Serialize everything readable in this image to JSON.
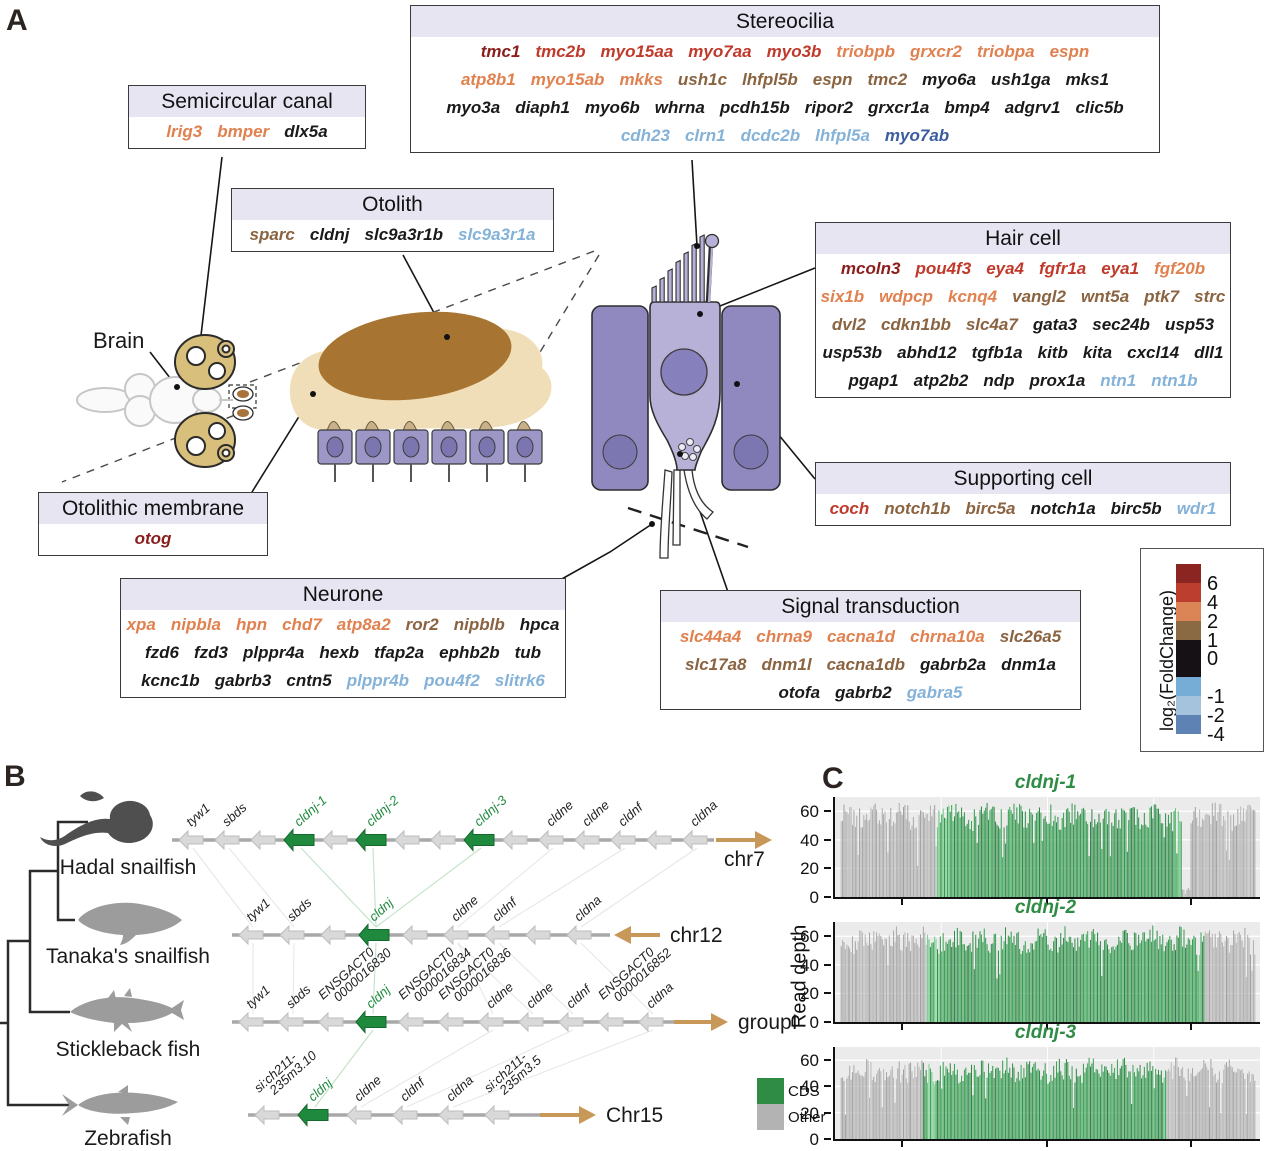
{
  "panelA": {
    "label": "A",
    "palette": {
      "dr": "#8a1e1c",
      "r": "#c03a2b",
      "o": "#e0814f",
      "br": "#8a6340",
      "k": "#1a1a1a",
      "lb": "#85b2d8",
      "b": "#3c5ca0"
    },
    "labels": {
      "brain": "Brain"
    },
    "boxes": {
      "stereocilia": {
        "title": "Stereocilia",
        "rows": [
          [
            [
              "tmc1",
              "dr"
            ],
            [
              "tmc2b",
              "r"
            ],
            [
              "myo15aa",
              "r"
            ],
            [
              "myo7aa",
              "r"
            ],
            [
              "myo3b",
              "r"
            ],
            [
              "triobpb",
              "o"
            ],
            [
              "grxcr2",
              "o"
            ],
            [
              "triobpa",
              "o"
            ],
            [
              "espn",
              "o"
            ]
          ],
          [
            [
              "atp8b1",
              "o"
            ],
            [
              "myo15ab",
              "o"
            ],
            [
              "mkks",
              "o"
            ],
            [
              "ush1c",
              "br"
            ],
            [
              "lhfpl5b",
              "br"
            ],
            [
              "espn",
              "br"
            ],
            [
              "tmc2",
              "br"
            ],
            [
              "myo6a",
              "k"
            ],
            [
              "ush1ga",
              "k"
            ],
            [
              "mks1",
              "k"
            ]
          ],
          [
            [
              "myo3a",
              "k"
            ],
            [
              "diaph1",
              "k"
            ],
            [
              "myo6b",
              "k"
            ],
            [
              "whrna",
              "k"
            ],
            [
              "pcdh15b",
              "k"
            ],
            [
              "ripor2",
              "k"
            ],
            [
              "grxcr1a",
              "k"
            ],
            [
              "bmp4",
              "k"
            ],
            [
              "adgrv1",
              "k"
            ],
            [
              "clic5b",
              "k"
            ]
          ],
          [
            [
              "cdh23",
              "lb"
            ],
            [
              "clrn1",
              "lb"
            ],
            [
              "dcdc2b",
              "lb"
            ],
            [
              "lhfpl5a",
              "lb"
            ],
            [
              "myo7ab",
              "b"
            ]
          ]
        ]
      },
      "semicircular": {
        "title": "Semicircular canal",
        "rows": [
          [
            [
              "lrig3",
              "o"
            ],
            [
              "bmper",
              "o"
            ],
            [
              "dlx5a",
              "k"
            ]
          ]
        ]
      },
      "otolith": {
        "title": "Otolith",
        "rows": [
          [
            [
              "sparc",
              "br"
            ],
            [
              "cldnj",
              "k"
            ],
            [
              "slc9a3r1b",
              "k"
            ],
            [
              "slc9a3r1a",
              "lb"
            ]
          ]
        ]
      },
      "haircell": {
        "title": "Hair cell",
        "rows": [
          [
            [
              "mcoln3",
              "dr"
            ],
            [
              "pou4f3",
              "r"
            ],
            [
              "eya4",
              "r"
            ],
            [
              "fgfr1a",
              "r"
            ],
            [
              "eya1",
              "r"
            ],
            [
              "fgf20b",
              "o"
            ]
          ],
          [
            [
              "six1b",
              "o"
            ],
            [
              "wdpcp",
              "o"
            ],
            [
              "kcnq4",
              "o"
            ],
            [
              "vangl2",
              "br"
            ],
            [
              "wnt5a",
              "br"
            ],
            [
              "ptk7",
              "br"
            ],
            [
              "strc",
              "br"
            ]
          ],
          [
            [
              "dvl2",
              "br"
            ],
            [
              "cdkn1bb",
              "br"
            ],
            [
              "slc4a7",
              "br"
            ],
            [
              "gata3",
              "k"
            ],
            [
              "sec24b",
              "k"
            ],
            [
              "usp53",
              "k"
            ]
          ],
          [
            [
              "usp53b",
              "k"
            ],
            [
              "abhd12",
              "k"
            ],
            [
              "tgfb1a",
              "k"
            ],
            [
              "kitb",
              "k"
            ],
            [
              "kita",
              "k"
            ],
            [
              "cxcl14",
              "k"
            ],
            [
              "dll1",
              "k"
            ]
          ],
          [
            [
              "pgap1",
              "k"
            ],
            [
              "atp2b2",
              "k"
            ],
            [
              "ndp",
              "k"
            ],
            [
              "prox1a",
              "k"
            ],
            [
              "ntn1",
              "lb"
            ],
            [
              "ntn1b",
              "lb"
            ]
          ]
        ]
      },
      "supporting": {
        "title": "Supporting cell",
        "rows": [
          [
            [
              "coch",
              "r"
            ],
            [
              "notch1b",
              "br"
            ],
            [
              "birc5a",
              "br"
            ],
            [
              "notch1a",
              "k"
            ],
            [
              "birc5b",
              "k"
            ],
            [
              "wdr1",
              "lb"
            ]
          ]
        ]
      },
      "otolithic": {
        "title": "Otolithic membrane",
        "rows": [
          [
            [
              "otog",
              "dr"
            ]
          ]
        ]
      },
      "neurone": {
        "title": "Neurone",
        "rows": [
          [
            [
              "xpa",
              "o"
            ],
            [
              "nipbla",
              "o"
            ],
            [
              "hpn",
              "o"
            ],
            [
              "chd7",
              "o"
            ],
            [
              "atp8a2",
              "o"
            ],
            [
              "ror2",
              "br"
            ],
            [
              "nipblb",
              "br"
            ],
            [
              "hpca",
              "k"
            ]
          ],
          [
            [
              "fzd6",
              "k"
            ],
            [
              "fzd3",
              "k"
            ],
            [
              "plppr4a",
              "k"
            ],
            [
              "hexb",
              "k"
            ],
            [
              "tfap2a",
              "k"
            ],
            [
              "ephb2b",
              "k"
            ],
            [
              "tub",
              "k"
            ]
          ],
          [
            [
              "kcnc1b",
              "k"
            ],
            [
              "gabrb3",
              "k"
            ],
            [
              "cntn5",
              "k"
            ],
            [
              "plppr4b",
              "lb"
            ],
            [
              "pou4f2",
              "lb"
            ],
            [
              "slitrk6",
              "lb"
            ]
          ]
        ]
      },
      "signal": {
        "title": "Signal transduction",
        "rows": [
          [
            [
              "slc44a4",
              "o"
            ],
            [
              "chrna9",
              "o"
            ],
            [
              "cacna1d",
              "o"
            ],
            [
              "chrna10a",
              "o"
            ],
            [
              "slc26a5",
              "br"
            ]
          ],
          [
            [
              "slc17a8",
              "br"
            ],
            [
              "dnm1l",
              "br"
            ],
            [
              "cacna1db",
              "br"
            ],
            [
              "gabrb2a",
              "k"
            ],
            [
              "dnm1a",
              "k"
            ]
          ],
          [
            [
              "otofa",
              "k"
            ],
            [
              "gabrb2",
              "k"
            ],
            [
              "gabra5",
              "lb"
            ]
          ]
        ]
      }
    },
    "colorbar": {
      "title": "log₂(FoldChange)",
      "tick_labels": [
        "6",
        "4",
        "2",
        "1",
        "0",
        "-1",
        "-2",
        "-4"
      ],
      "segments": [
        "#8b2522",
        "#bc3e2e",
        "#db8455",
        "#8a6a43",
        "#161114",
        "#76add7",
        "#a5c3dd",
        "#5e82b4"
      ],
      "segment_units": [
        1,
        1,
        1,
        1,
        2,
        1,
        1,
        1
      ]
    }
  },
  "panelB": {
    "label": "B",
    "gene_colors": {
      "cds": "#1f8a3d",
      "other": "#d9d9d9",
      "other_stroke": "#bdbdbd"
    },
    "chrom_color": "#c89858",
    "species": [
      {
        "name": "Hadal snailfish",
        "color": "#4f4f4f",
        "chrom": "chr7",
        "chrom_arrow": "right",
        "genes": [
          {
            "n": "tyw1"
          },
          {
            "n": "sbds"
          },
          {},
          {
            "n": "cldnj-1",
            "cds": true
          },
          {},
          {
            "n": "cldnj-2",
            "cds": true
          },
          {},
          {},
          {
            "n": "cldnj-3",
            "cds": true
          },
          {},
          {
            "n": "cldne"
          },
          {
            "n": "cldne"
          },
          {
            "n": "cldnf"
          },
          {},
          {
            "n": "cldna"
          }
        ]
      },
      {
        "name": "Tanaka's snailfish",
        "color": "#9c9c9c",
        "chrom": "chr12",
        "chrom_arrow": "left",
        "genes": [
          {
            "n": "tyw1"
          },
          {
            "n": "sbds"
          },
          {},
          {
            "n": "cldnj",
            "cds": true
          },
          {},
          {
            "n": "cldne"
          },
          {
            "n": "cldnf"
          },
          {},
          {
            "n": "cldna"
          }
        ]
      },
      {
        "name": "Stickleback fish",
        "color": "#9c9c9c",
        "chrom": "groupI",
        "chrom_arrow": "right",
        "genes": [
          {
            "n": "tyw1"
          },
          {
            "n": "sbds"
          },
          {
            "n": "ENSGACT0\n0000016830"
          },
          {
            "n": "cldnj",
            "cds": true
          },
          {
            "n": "ENSGACT0\n0000016834"
          },
          {
            "n": "ENSGACT0\n0000016836"
          },
          {
            "n": "cldne"
          },
          {
            "n": "cldne"
          },
          {
            "n": "cldnf"
          },
          {
            "n": "ENSGACT0\n0000016852"
          },
          {
            "n": "cldna"
          }
        ]
      },
      {
        "name": "Zebrafish",
        "color": "#9c9c9c",
        "chrom": "Chr15",
        "chrom_arrow": "right",
        "genes": [
          {
            "n": "si:ch211-\n235m3.10"
          },
          {
            "n": "cldnj",
            "cds": true
          },
          {
            "n": "cldne"
          },
          {
            "n": "cldnf"
          },
          {
            "n": "cldna"
          },
          {
            "n": "si:ch211-\n235m3.5"
          }
        ]
      }
    ]
  },
  "panelC": {
    "label": "C",
    "ylabel": "Read depth",
    "legend": {
      "cds": "CDS",
      "other": "Other"
    },
    "colors": {
      "cds": "#2e8c44",
      "other": "#ababab",
      "plot_bg": "#ebebeb"
    }
  },
  "chart_data": [
    {
      "type": "bar",
      "title": "cldnj-1",
      "ylabel": "Read depth",
      "ylim": [
        0,
        70
      ],
      "yticks": [
        0,
        20,
        40,
        60
      ],
      "x_axis": "genomic position (unlabeled)",
      "grid": true,
      "regions": [
        {
          "from": 0,
          "to": 0.24,
          "class": "other"
        },
        {
          "from": 0.24,
          "to": 0.815,
          "class": "cds"
        },
        {
          "from": 0.815,
          "to": 0.835,
          "class": "gap"
        },
        {
          "from": 0.835,
          "to": 1,
          "class": "other"
        }
      ],
      "mean_depth": 58,
      "depth_range": [
        40,
        67
      ]
    },
    {
      "type": "bar",
      "title": "cldnj-2",
      "ylabel": "Read depth",
      "ylim": [
        0,
        70
      ],
      "yticks": [
        0,
        20,
        40,
        60
      ],
      "x_axis": "genomic position (unlabeled)",
      "grid": true,
      "regions": [
        {
          "from": 0,
          "to": 0.215,
          "class": "other"
        },
        {
          "from": 0.215,
          "to": 0.87,
          "class": "cds"
        },
        {
          "from": 0.87,
          "to": 1,
          "class": "other"
        }
      ],
      "mean_depth": 58,
      "depth_range": [
        40,
        68
      ]
    },
    {
      "type": "bar",
      "title": "cldnj-3",
      "ylabel": "Read depth",
      "ylim": [
        0,
        70
      ],
      "yticks": [
        0,
        20,
        40,
        60
      ],
      "x_axis": "genomic position (unlabeled)",
      "grid": true,
      "regions": [
        {
          "from": 0,
          "to": 0.205,
          "class": "other"
        },
        {
          "from": 0.205,
          "to": 0.78,
          "class": "cds"
        },
        {
          "from": 0.78,
          "to": 1,
          "class": "other"
        }
      ],
      "mean_depth": 53,
      "depth_range": [
        36,
        62
      ]
    }
  ]
}
